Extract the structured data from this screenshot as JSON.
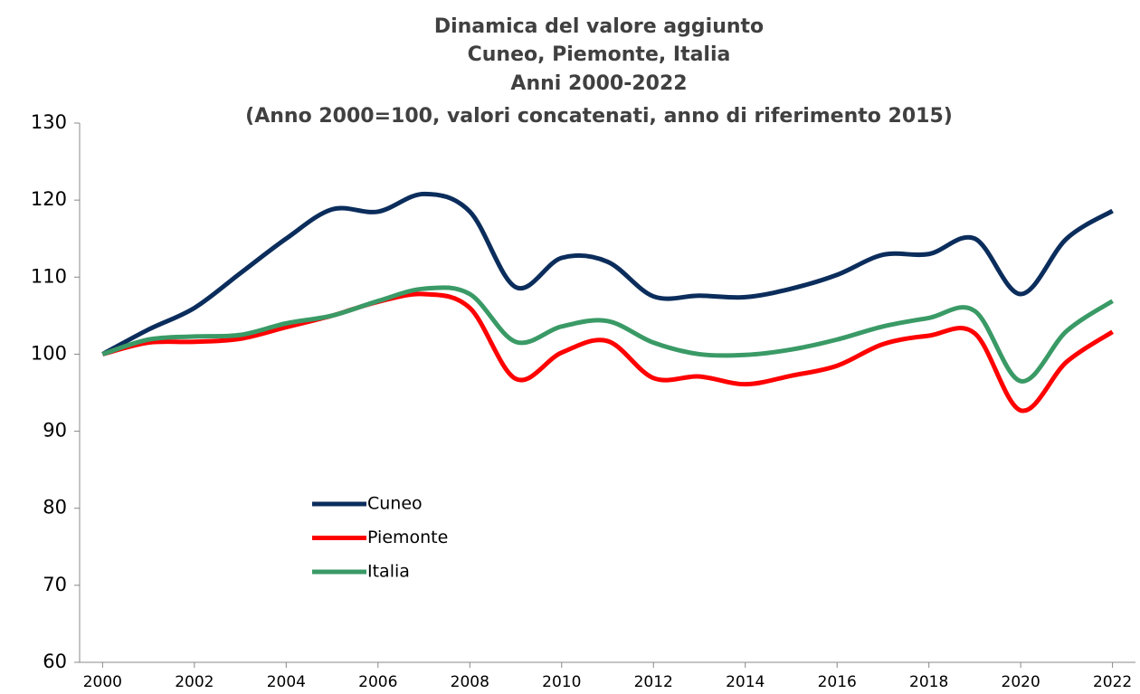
{
  "chart_data": {
    "type": "line",
    "title": [
      "Dinamica del valore aggiunto",
      "Cuneo, Piemonte, Italia",
      "Anni 2000-2022",
      "(Anno 2000=100, valori concatenati, anno di riferimento 2015)"
    ],
    "x": [
      2000,
      2001,
      2002,
      2003,
      2004,
      2005,
      2006,
      2007,
      2008,
      2009,
      2010,
      2011,
      2012,
      2013,
      2014,
      2015,
      2016,
      2017,
      2018,
      2019,
      2020,
      2021,
      2022
    ],
    "series": [
      {
        "name": "Cuneo",
        "color": "#0b2d5c",
        "values": [
          100,
          103.2,
          106,
          110.5,
          115,
          118.8,
          118.5,
          120.8,
          118.5,
          108.7,
          112.5,
          112,
          107.5,
          107.6,
          107.4,
          108.5,
          110.3,
          112.9,
          113,
          115,
          107.8,
          115,
          118.6
        ]
      },
      {
        "name": "Piemonte",
        "color": "#ff0000",
        "values": [
          100,
          101.5,
          101.6,
          102,
          103.5,
          105,
          106.8,
          107.8,
          106,
          96.8,
          100.2,
          101.7,
          96.9,
          97.1,
          96.1,
          97.2,
          98.5,
          101.3,
          102.4,
          102.7,
          92.7,
          99,
          102.9
        ]
      },
      {
        "name": "Italia",
        "color": "#3a9a66",
        "values": [
          100,
          101.9,
          102.3,
          102.5,
          104,
          105,
          106.9,
          108.5,
          107.8,
          101.6,
          103.6,
          104.3,
          101.5,
          100,
          99.9,
          100.6,
          101.9,
          103.6,
          104.7,
          105.6,
          96.5,
          103,
          106.9
        ]
      }
    ],
    "xlim": [
      1999.5,
      2022.5
    ],
    "xticks": [
      2000,
      2002,
      2004,
      2006,
      2008,
      2010,
      2012,
      2014,
      2016,
      2018,
      2020,
      2022
    ],
    "ylim": [
      60,
      130
    ],
    "yticks": [
      60,
      70,
      80,
      90,
      100,
      110,
      120,
      130
    ],
    "grid": false,
    "legend": "center-left"
  }
}
